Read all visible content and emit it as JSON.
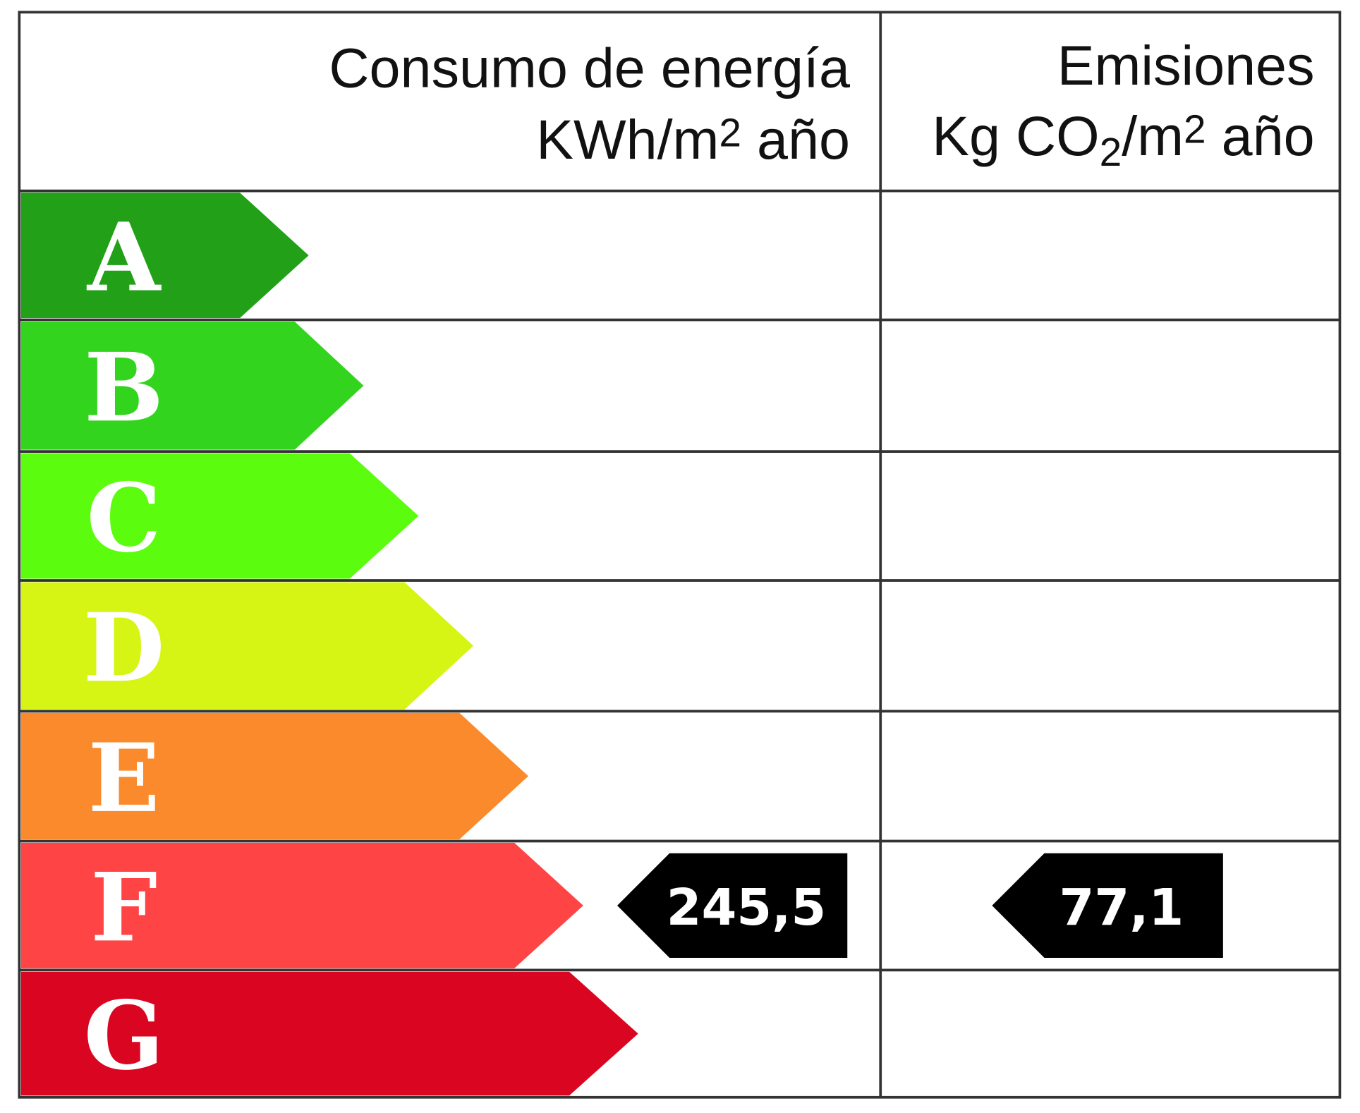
{
  "header": {
    "consumo": {
      "title": "Consumo de energía",
      "unit": [
        "KWh/m",
        "2",
        " año"
      ]
    },
    "emisiones": {
      "title": "Emisiones",
      "unit": [
        "Kg CO",
        "2",
        "/m",
        "2",
        " año"
      ]
    }
  },
  "rows": [
    {
      "letter": "A",
      "color": "#21a018"
    },
    {
      "letter": "B",
      "color": "#33d41e"
    },
    {
      "letter": "C",
      "color": "#5cfc0e"
    },
    {
      "letter": "D",
      "color": "#d6f515"
    },
    {
      "letter": "E",
      "color": "#fb8a2c"
    },
    {
      "letter": "F",
      "color": "#fe4444",
      "consumo": "245,5",
      "emisiones": "77,1"
    },
    {
      "letter": "G",
      "color": "#da0520"
    }
  ]
}
